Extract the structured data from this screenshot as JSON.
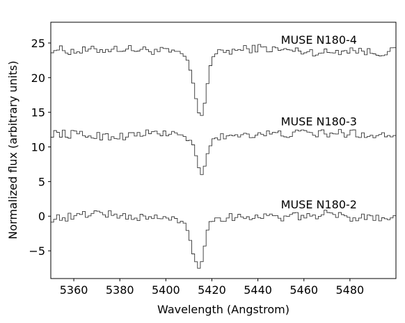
{
  "chart_data": {
    "type": "line",
    "xlabel": "Wavelength (Angstrom)",
    "ylabel": "Normalized flux (arbitrary units)",
    "xlim": [
      5350,
      5500
    ],
    "ylim": [
      -9,
      28
    ],
    "xticks": [
      5360,
      5380,
      5400,
      5420,
      5440,
      5460,
      5480
    ],
    "yticks": [
      -5,
      0,
      5,
      10,
      15,
      20,
      25
    ],
    "ytick_labels": [
      "−5",
      "0",
      "5",
      "10",
      "15",
      "20",
      "25"
    ],
    "grid": false,
    "line_color": "#333333",
    "series": [
      {
        "name": "MUSE N180-4",
        "x": [
          5350,
          5360,
          5370,
          5380,
          5390,
          5400,
          5405,
          5408,
          5410,
          5412,
          5414,
          5416,
          5418,
          5420,
          5425,
          5430,
          5440,
          5450,
          5460,
          5470,
          5480,
          5490,
          5500
        ],
        "y": [
          24.2,
          23.8,
          24.0,
          24.2,
          24.0,
          23.8,
          23.6,
          23.2,
          22.0,
          19.0,
          15.0,
          14.5,
          19.0,
          23.0,
          23.8,
          23.9,
          24.3,
          24.0,
          23.8,
          23.6,
          24.1,
          23.6,
          23.8
        ]
      },
      {
        "name": "MUSE N180-3",
        "x": [
          5350,
          5360,
          5370,
          5380,
          5390,
          5400,
          5405,
          5408,
          5410,
          5412,
          5414,
          5416,
          5418,
          5420,
          5425,
          5430,
          5440,
          5450,
          5460,
          5470,
          5480,
          5490,
          5500
        ],
        "y": [
          12.0,
          11.8,
          11.6,
          11.5,
          11.9,
          12.0,
          11.8,
          11.5,
          11.0,
          10.0,
          7.5,
          5.5,
          9.0,
          11.0,
          11.5,
          11.8,
          11.9,
          11.8,
          12.0,
          11.9,
          12.0,
          11.7,
          11.8
        ]
      },
      {
        "name": "MUSE N180-2",
        "x": [
          5350,
          5360,
          5370,
          5380,
          5390,
          5400,
          5405,
          5408,
          5410,
          5412,
          5414,
          5416,
          5418,
          5420,
          5425,
          5430,
          5440,
          5450,
          5460,
          5470,
          5480,
          5490,
          5500
        ],
        "y": [
          -0.3,
          -0.1,
          0.6,
          0.0,
          -0.2,
          -0.3,
          -0.6,
          -1.0,
          -2.5,
          -5.5,
          -7.5,
          -6.0,
          -2.0,
          -0.5,
          -0.2,
          -0.1,
          0.0,
          -0.2,
          0.0,
          0.3,
          -0.2,
          0.0,
          -0.3
        ]
      }
    ]
  }
}
